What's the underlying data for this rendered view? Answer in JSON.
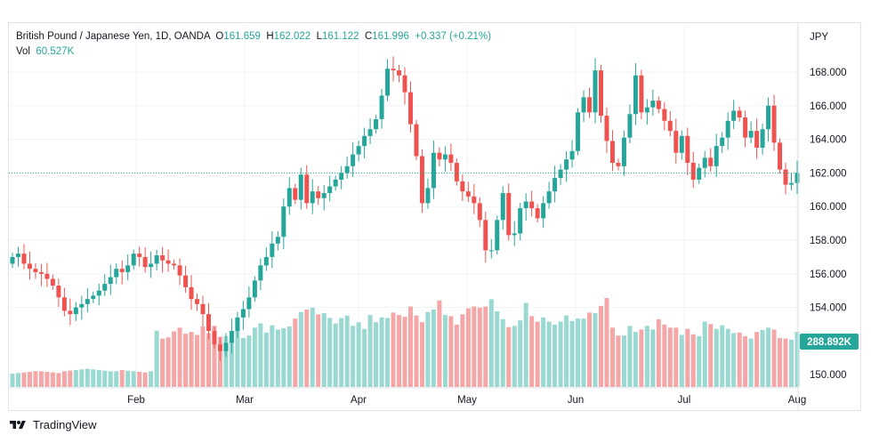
{
  "legend": {
    "symbol": "British Pound / Japanese Yen, 1D, OANDA",
    "o_label": "O",
    "o_val": "161.659",
    "h_label": "H",
    "h_val": "162.022",
    "l_label": "L",
    "l_val": "161.122",
    "c_label": "C",
    "c_val": "161.996",
    "change": "+0.337 (+0.21%)",
    "vol_label": "Vol",
    "vol_val": "60.527K"
  },
  "currency": "JPY",
  "volume_badge": "288.892K",
  "branding": "TradingView",
  "colors": {
    "up": "#26a69a",
    "down": "#ef5350",
    "vol_up": "#9ad8d2",
    "vol_down": "#f4a7a6",
    "grid": "#f0f3fa",
    "price_line": "#26a69a"
  },
  "chart_data": {
    "type": "candlestick",
    "title": "British Pound / Japanese Yen, 1D, OANDA",
    "y_axis_ticks": [
      "168.000",
      "166.000",
      "164.000",
      "162.000",
      "160.000",
      "158.000",
      "156.000",
      "154.000",
      "150.000"
    ],
    "x_axis_ticks": [
      "Feb",
      "Mar",
      "Apr",
      "May",
      "Jun",
      "Jul",
      "Aug"
    ],
    "ylim": [
      149.2,
      170.0
    ],
    "last_close": 161.996,
    "approx_closes": [
      157.0,
      157.2,
      156.6,
      156.3,
      156.1,
      156.0,
      155.7,
      155.3,
      154.6,
      153.8,
      153.6,
      154.0,
      154.2,
      154.5,
      154.7,
      155.0,
      155.4,
      155.8,
      156.3,
      156.1,
      156.5,
      157.2,
      157.0,
      156.4,
      156.6,
      157.1,
      156.8,
      156.6,
      156.5,
      155.9,
      155.2,
      154.5,
      154.2,
      153.6,
      152.6,
      151.8,
      151.4,
      151.9,
      152.6,
      153.4,
      153.9,
      154.6,
      155.6,
      156.5,
      157.0,
      157.8,
      158.2,
      160.0,
      161.1,
      160.4,
      161.9,
      160.2,
      160.9,
      160.5,
      160.8,
      161.2,
      161.6,
      162.0,
      162.4,
      163.1,
      163.6,
      164.2,
      164.6,
      165.2,
      166.6,
      168.2,
      168.1,
      167.8,
      166.8,
      164.9,
      163.0,
      160.2,
      161.1,
      163.2,
      162.8,
      163.1,
      162.6,
      161.5,
      160.9,
      160.6,
      160.2,
      159.2,
      157.4,
      157.4,
      159.2,
      160.8,
      158.3,
      158.4,
      159.9,
      160.3,
      159.9,
      159.3,
      160.2,
      160.9,
      161.7,
      162.2,
      162.8,
      163.3,
      165.6,
      166.5,
      165.6,
      168.1,
      165.4,
      163.9,
      162.6,
      162.4,
      164.1,
      165.5,
      167.8,
      165.6,
      165.9,
      166.3,
      165.8,
      165.1,
      164.5,
      163.2,
      164.2,
      162.6,
      161.6,
      162.3,
      162.9,
      162.4,
      163.6,
      164.1,
      165.1,
      165.7,
      165.3,
      164.1,
      164.5,
      163.5,
      164.6,
      166.0,
      163.8,
      162.2,
      161.3,
      161.4,
      162.0
    ],
    "approx_volumes": [
      2.2,
      2.3,
      2.4,
      2.5,
      2.6,
      2.6,
      2.5,
      2.4,
      2.3,
      2.6,
      2.7,
      2.8,
      2.9,
      3.0,
      2.9,
      2.8,
      2.7,
      2.6,
      2.6,
      2.8,
      2.7,
      2.6,
      2.5,
      2.4,
      2.6,
      9.3,
      8.0,
      8.2,
      9.2,
      9.8,
      8.8,
      9.1,
      8.6,
      10.0,
      8.9,
      10.1,
      8.3,
      8.4,
      8.9,
      10.8,
      8.1,
      8.5,
      9.8,
      10.5,
      9.0,
      10.2,
      9.5,
      9.7,
      10.0,
      11.3,
      12.4,
      12.8,
      13.1,
      12.0,
      12.2,
      11.4,
      10.5,
      11.4,
      11.8,
      10.1,
      10.7,
      9.6,
      11.9,
      10.7,
      11.5,
      11.4,
      12.3,
      11.9,
      11.6,
      13.3,
      11.8,
      10.7,
      12.4,
      12.8,
      14.3,
      11.9,
      11.7,
      10.3,
      12.0,
      13.0,
      13.3,
      13.1,
      13.3,
      14.5,
      12.5,
      11.2,
      9.9,
      10.1,
      11.0,
      13.9,
      11.7,
      10.8,
      11.5,
      10.8,
      10.3,
      10.8,
      11.8,
      10.9,
      11.3,
      11.3,
      12.3,
      12.2,
      13.4,
      14.7,
      9.8,
      8.5,
      8.5,
      10.1,
      9.1,
      9.5,
      10.1,
      9.5,
      11.2,
      10.3,
      9.8,
      9.8,
      8.6,
      9.6,
      8.7,
      8.4,
      10.8,
      10.4,
      9.6,
      10.2,
      9.6,
      8.9,
      9.0,
      8.4,
      8.0,
      9.1,
      9.4,
      9.8,
      9.5,
      8.1,
      8.0,
      7.8,
      9.1
    ]
  }
}
